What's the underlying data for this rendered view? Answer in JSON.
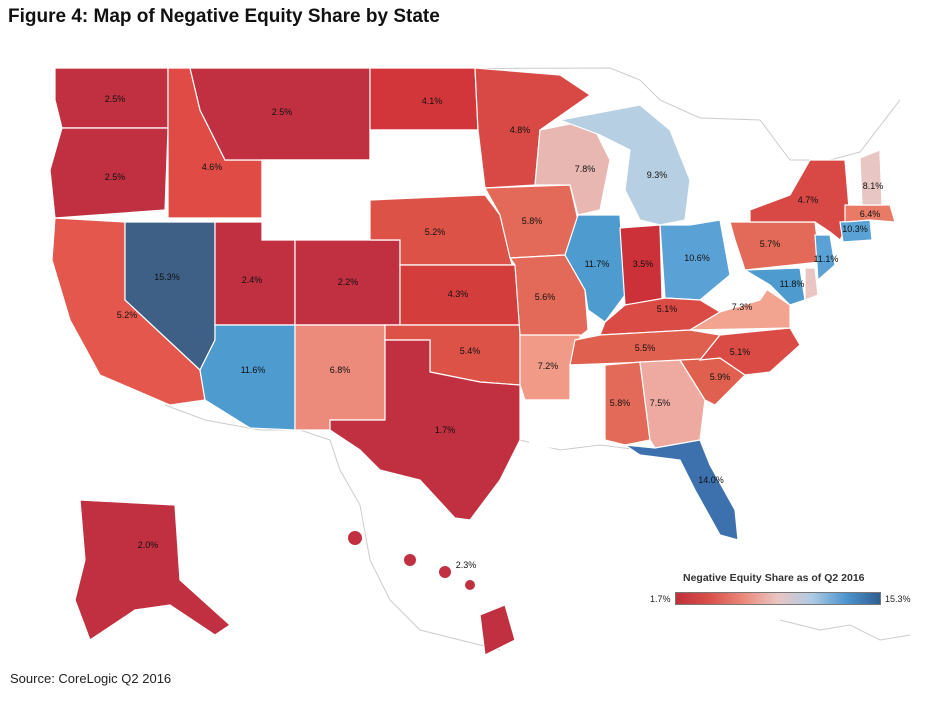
{
  "title": "Figure 4: Map of Negative Equity Share by State",
  "source": "Source: CoreLogic Q2 2016",
  "legend": {
    "title": "Negative Equity Share as of Q2 2016",
    "min_label": "1.7%",
    "max_label": "15.3%",
    "min_value": 1.7,
    "max_value": 15.3,
    "colors": [
      "#c0313a",
      "#d9504a",
      "#ea8a7c",
      "#e9c6c4",
      "#aecbe3",
      "#4e95cf",
      "#2f5f92"
    ]
  },
  "states": [
    {
      "id": "WA",
      "value": "2.5%",
      "color": "#c03040"
    },
    {
      "id": "OR",
      "value": "2.5%",
      "color": "#c03040"
    },
    {
      "id": "CA",
      "value": "5.2%",
      "color": "#e3574c"
    },
    {
      "id": "ID",
      "value": "4.6%",
      "color": "#e14b45"
    },
    {
      "id": "NV",
      "value": "15.3%",
      "color": "#3e5f86"
    },
    {
      "id": "MT",
      "value": "2.5%",
      "color": "#c03040"
    },
    {
      "id": "WY",
      "value": "",
      "color": "#ffffff"
    },
    {
      "id": "UT",
      "value": "2.4%",
      "color": "#c03040"
    },
    {
      "id": "AZ",
      "value": "11.6%",
      "color": "#4e9bd0"
    },
    {
      "id": "CO",
      "value": "2.2%",
      "color": "#c03040"
    },
    {
      "id": "NM",
      "value": "6.8%",
      "color": "#ec8a7c"
    },
    {
      "id": "ND",
      "value": "4.1%",
      "color": "#d3363a"
    },
    {
      "id": "SD",
      "value": "",
      "color": "#ffffff"
    },
    {
      "id": "NE",
      "value": "5.2%",
      "color": "#dc5246"
    },
    {
      "id": "KS",
      "value": "4.3%",
      "color": "#d33d3c"
    },
    {
      "id": "OK",
      "value": "5.4%",
      "color": "#dc5246"
    },
    {
      "id": "TX",
      "value": "1.7%",
      "color": "#c03040"
    },
    {
      "id": "MN",
      "value": "4.8%",
      "color": "#d84844"
    },
    {
      "id": "IA",
      "value": "5.8%",
      "color": "#e36a58"
    },
    {
      "id": "MO",
      "value": "5.6%",
      "color": "#e36a58"
    },
    {
      "id": "AR",
      "value": "7.2%",
      "color": "#f19a88"
    },
    {
      "id": "LA",
      "value": "",
      "color": "#ffffff"
    },
    {
      "id": "WI",
      "value": "7.8%",
      "color": "#e8b7b2"
    },
    {
      "id": "IL",
      "value": "11.7%",
      "color": "#4e9bd0"
    },
    {
      "id": "MI",
      "value": "9.3%",
      "color": "#b6cfe3"
    },
    {
      "id": "IN",
      "value": "3.5%",
      "color": "#cc3038"
    },
    {
      "id": "OH",
      "value": "10.6%",
      "color": "#5aa2d6"
    },
    {
      "id": "KY",
      "value": "5.1%",
      "color": "#db4b45"
    },
    {
      "id": "TN",
      "value": "5.5%",
      "color": "#e06050"
    },
    {
      "id": "MS",
      "value": "",
      "color": "#ffffff"
    },
    {
      "id": "AL",
      "value": "5.8%",
      "color": "#e36a58"
    },
    {
      "id": "GA",
      "value": "7.5%",
      "color": "#eeaaa0"
    },
    {
      "id": "FL",
      "value": "14.0%",
      "color": "#3c71ad"
    },
    {
      "id": "SC",
      "value": "5.9%",
      "color": "#e06050"
    },
    {
      "id": "NC",
      "value": "5.1%",
      "color": "#db4b45"
    },
    {
      "id": "VA",
      "value": "7.3%",
      "color": "#f2a490"
    },
    {
      "id": "WV",
      "value": "",
      "color": "#ffffff"
    },
    {
      "id": "MD",
      "value": "11.8%",
      "color": "#4e9bd0"
    },
    {
      "id": "DE",
      "value": "",
      "color": "#e9c6c4"
    },
    {
      "id": "PA",
      "value": "5.7%",
      "color": "#e36a58"
    },
    {
      "id": "NJ",
      "value": "11.1%",
      "color": "#5aa2d6"
    },
    {
      "id": "NY",
      "value": "4.7%",
      "color": "#d84844"
    },
    {
      "id": "CT",
      "value": "10.3%",
      "color": "#5aa2d6"
    },
    {
      "id": "MA",
      "value": "6.4%",
      "color": "#e87a66"
    },
    {
      "id": "NH",
      "value": "8.1%",
      "color": "#e8c6c4"
    },
    {
      "id": "VT",
      "value": "",
      "color": "#ffffff"
    },
    {
      "id": "ME",
      "value": "",
      "color": "#ffffff"
    },
    {
      "id": "AK",
      "value": "2.0%",
      "color": "#c03040"
    },
    {
      "id": "HI",
      "value": "2.3%",
      "color": "#c03040"
    }
  ]
}
